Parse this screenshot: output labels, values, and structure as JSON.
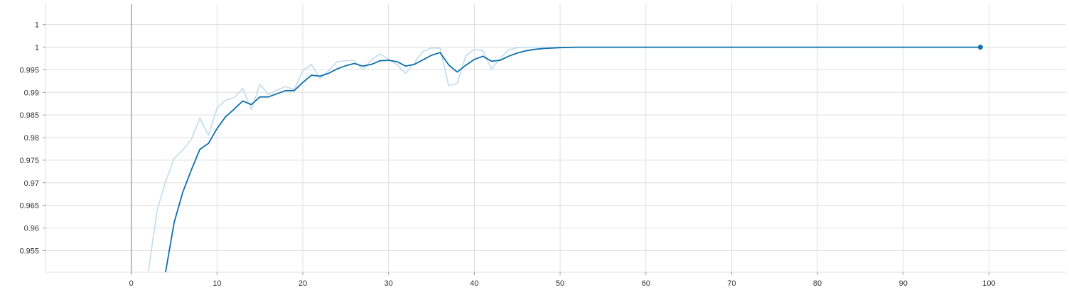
{
  "chart_data": {
    "type": "line",
    "title": "",
    "xlabel": "",
    "ylabel": "",
    "xlim": [
      -10,
      109
    ],
    "ylim": [
      0.9502,
      1.0095
    ],
    "grid": true,
    "legend": "none",
    "x_ticks": [
      {
        "value": 0,
        "label": "0"
      },
      {
        "value": 10,
        "label": "10"
      },
      {
        "value": 20,
        "label": "20"
      },
      {
        "value": 30,
        "label": "30"
      },
      {
        "value": 40,
        "label": "40"
      },
      {
        "value": 50,
        "label": "50"
      },
      {
        "value": 60,
        "label": "60"
      },
      {
        "value": 70,
        "label": "70"
      },
      {
        "value": 80,
        "label": "80"
      },
      {
        "value": 90,
        "label": "90"
      },
      {
        "value": 100,
        "label": "100"
      }
    ],
    "y_ticks": [
      {
        "value": 0.955,
        "label": "0.955"
      },
      {
        "value": 0.96,
        "label": "0.96"
      },
      {
        "value": 0.965,
        "label": "0.965"
      },
      {
        "value": 0.97,
        "label": "0.97"
      },
      {
        "value": 0.975,
        "label": "0.975"
      },
      {
        "value": 0.98,
        "label": "0.98"
      },
      {
        "value": 0.985,
        "label": "0.985"
      },
      {
        "value": 0.99,
        "label": "0.99"
      },
      {
        "value": 0.995,
        "label": "0.995"
      },
      {
        "value": 1.0,
        "label": "1"
      },
      {
        "value": 1.005,
        "label": "1"
      }
    ],
    "colors": {
      "smoothed": "#0f6fab",
      "raw": "#bfdcef",
      "grid": "#dedede",
      "axis": "#999999"
    },
    "series": [
      {
        "role": "raw",
        "x": [
          2,
          3,
          4,
          5,
          6,
          7,
          8,
          9,
          10,
          11,
          12,
          13,
          14,
          15,
          16,
          17,
          18,
          19,
          20,
          21,
          22,
          23,
          24,
          25,
          26,
          27,
          28,
          29,
          30,
          31,
          32,
          33,
          34,
          35,
          36,
          37,
          38,
          39,
          40,
          41,
          42,
          43,
          44,
          45,
          46,
          47,
          48,
          49,
          50,
          51,
          52,
          53,
          54,
          55,
          60,
          70,
          80,
          90,
          99
        ],
        "y": [
          0.9505,
          0.9638,
          0.9702,
          0.9754,
          0.9772,
          0.9796,
          0.9843,
          0.9805,
          0.9865,
          0.9883,
          0.9888,
          0.9909,
          0.9862,
          0.9918,
          0.9895,
          0.9905,
          0.9913,
          0.9906,
          0.9948,
          0.9962,
          0.9931,
          0.9948,
          0.9968,
          0.997,
          0.9971,
          0.995,
          0.9972,
          0.9985,
          0.9974,
          0.9961,
          0.9942,
          0.9965,
          0.9991,
          0.9998,
          0.9998,
          0.9915,
          0.992,
          0.9981,
          0.9995,
          0.9992,
          0.9952,
          0.9975,
          0.9994,
          0.9999,
          1.0,
          1.0,
          1.0,
          1.0,
          1.0,
          1.0,
          1.0,
          1.0,
          1.0,
          1.0,
          1.0,
          1.0,
          1.0,
          1.0,
          1.0
        ]
      },
      {
        "role": "smoothed",
        "x": [
          4,
          5,
          6,
          7,
          8,
          9,
          10,
          11,
          12,
          13,
          14,
          15,
          16,
          17,
          18,
          19,
          20,
          21,
          22,
          23,
          24,
          25,
          26,
          27,
          28,
          29,
          30,
          31,
          32,
          33,
          34,
          35,
          36,
          37,
          38,
          39,
          40,
          41,
          42,
          43,
          44,
          45,
          46,
          47,
          48,
          49,
          50,
          52,
          55,
          60,
          70,
          80,
          90,
          99
        ],
        "y": [
          0.9502,
          0.9612,
          0.9679,
          0.9728,
          0.9774,
          0.9787,
          0.982,
          0.9846,
          0.9863,
          0.9881,
          0.9873,
          0.989,
          0.989,
          0.9897,
          0.9904,
          0.9904,
          0.9922,
          0.9938,
          0.9936,
          0.9942,
          0.9952,
          0.9959,
          0.9964,
          0.9958,
          0.9962,
          0.997,
          0.9971,
          0.9968,
          0.9958,
          0.9962,
          0.9972,
          0.9982,
          0.9988,
          0.9961,
          0.9945,
          0.996,
          0.9973,
          0.998,
          0.9969,
          0.9971,
          0.998,
          0.9987,
          0.9992,
          0.9995,
          0.9997,
          0.9998,
          0.9999,
          1.0,
          1.0,
          1.0,
          1.0,
          1.0,
          1.0,
          1.0
        ]
      }
    ],
    "last_point": {
      "x": 99,
      "y": 1.0
    }
  }
}
